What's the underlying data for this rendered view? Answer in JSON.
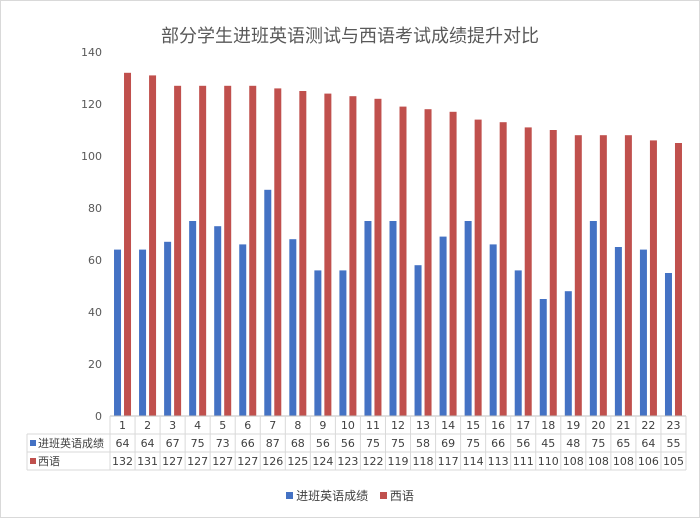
{
  "chart_data": {
    "type": "bar",
    "title": "部分学生进班英语测试与西语考试成绩提升对比",
    "categories": [
      "1",
      "2",
      "3",
      "4",
      "5",
      "6",
      "7",
      "8",
      "9",
      "10",
      "11",
      "12",
      "13",
      "14",
      "15",
      "16",
      "17",
      "18",
      "19",
      "20",
      "21",
      "22",
      "23"
    ],
    "series": [
      {
        "name": "进班英语成绩",
        "color": "#4472c4",
        "values": [
          64,
          64,
          67,
          75,
          73,
          66,
          87,
          68,
          56,
          56,
          75,
          75,
          58,
          69,
          75,
          66,
          56,
          45,
          48,
          75,
          65,
          64,
          55
        ]
      },
      {
        "name": "西语",
        "color": "#c0504d",
        "values": [
          132,
          131,
          127,
          127,
          127,
          127,
          126,
          125,
          124,
          123,
          122,
          119,
          118,
          117,
          114,
          113,
          111,
          110,
          108,
          108,
          108,
          106,
          105
        ]
      }
    ],
    "ylim": [
      0,
      140
    ],
    "yticks": [
      0,
      20,
      40,
      60,
      80,
      100,
      120,
      140
    ],
    "grid": false,
    "data_table": true,
    "legend": "bottom"
  }
}
